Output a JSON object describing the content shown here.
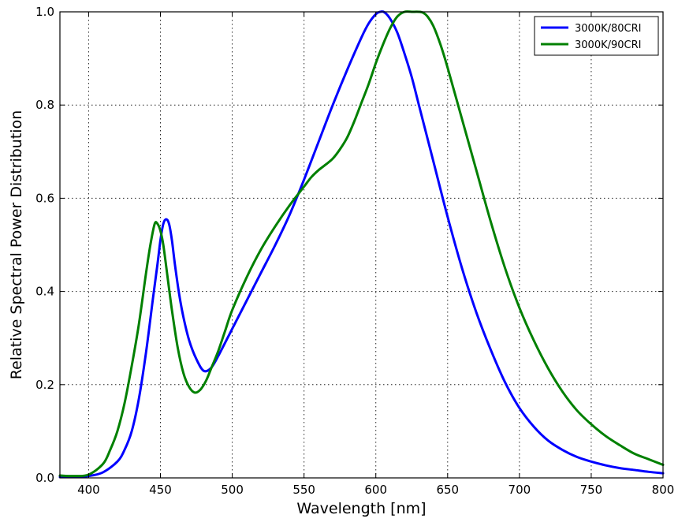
{
  "chart_data": {
    "type": "line",
    "title": "",
    "xlabel": "Wavelength [nm]",
    "ylabel": "Relative Spectral Power Distribution",
    "xlim": [
      380,
      800
    ],
    "ylim": [
      0.0,
      1.0
    ],
    "grid": true,
    "legend_position": "top-right",
    "x_ticks": [
      400,
      450,
      500,
      550,
      600,
      650,
      700,
      750,
      800
    ],
    "x_tick_labels": [
      "400",
      "450",
      "500",
      "550",
      "600",
      "650",
      "700",
      "750",
      "800"
    ],
    "y_ticks": [
      0.0,
      0.2,
      0.4,
      0.6,
      0.8,
      1.0
    ],
    "y_tick_labels": [
      "0.0",
      "0.2",
      "0.4",
      "0.6",
      "0.8",
      "1.0"
    ],
    "series": [
      {
        "name": "3000K/80CRI",
        "color": "#0000ff",
        "x": [
          380,
          390,
          400,
          410,
          420,
          425,
          430,
          435,
          440,
          445,
          448,
          450,
          452,
          454,
          456,
          458,
          460,
          463,
          466,
          470,
          475,
          480,
          485,
          490,
          500,
          510,
          520,
          530,
          540,
          550,
          560,
          570,
          580,
          590,
          595,
          600,
          603,
          606,
          610,
          615,
          620,
          625,
          630,
          640,
          650,
          660,
          670,
          680,
          690,
          700,
          710,
          720,
          730,
          740,
          750,
          760,
          770,
          780,
          790,
          800
        ],
        "values": [
          0.002,
          0.002,
          0.004,
          0.012,
          0.035,
          0.06,
          0.1,
          0.17,
          0.27,
          0.39,
          0.46,
          0.51,
          0.545,
          0.555,
          0.545,
          0.51,
          0.46,
          0.395,
          0.345,
          0.295,
          0.255,
          0.23,
          0.235,
          0.26,
          0.32,
          0.38,
          0.44,
          0.5,
          0.565,
          0.64,
          0.72,
          0.8,
          0.875,
          0.945,
          0.975,
          0.995,
          1.0,
          0.999,
          0.985,
          0.955,
          0.91,
          0.86,
          0.8,
          0.68,
          0.56,
          0.45,
          0.355,
          0.275,
          0.205,
          0.15,
          0.11,
          0.08,
          0.06,
          0.045,
          0.035,
          0.027,
          0.021,
          0.017,
          0.013,
          0.01
        ]
      },
      {
        "name": "3000K/90CRI",
        "color": "#008000",
        "x": [
          380,
          390,
          400,
          410,
          415,
          420,
          425,
          430,
          435,
          440,
          443,
          446,
          448,
          450,
          452,
          455,
          458,
          462,
          466,
          470,
          474,
          478,
          482,
          486,
          490,
          495,
          500,
          510,
          520,
          530,
          540,
          550,
          555,
          560,
          565,
          570,
          575,
          580,
          585,
          590,
          595,
          600,
          605,
          610,
          615,
          620,
          625,
          630,
          633,
          636,
          640,
          645,
          650,
          660,
          670,
          680,
          690,
          700,
          710,
          720,
          730,
          740,
          750,
          760,
          770,
          780,
          790,
          800
        ],
        "values": [
          0.005,
          0.004,
          0.007,
          0.03,
          0.06,
          0.1,
          0.16,
          0.24,
          0.33,
          0.44,
          0.5,
          0.545,
          0.545,
          0.53,
          0.5,
          0.43,
          0.36,
          0.28,
          0.225,
          0.195,
          0.183,
          0.19,
          0.21,
          0.24,
          0.27,
          0.315,
          0.36,
          0.43,
          0.49,
          0.54,
          0.585,
          0.625,
          0.645,
          0.66,
          0.672,
          0.685,
          0.705,
          0.73,
          0.765,
          0.805,
          0.845,
          0.89,
          0.93,
          0.965,
          0.99,
          1.0,
          1.0,
          1.0,
          0.998,
          0.99,
          0.97,
          0.93,
          0.88,
          0.77,
          0.66,
          0.55,
          0.45,
          0.365,
          0.295,
          0.235,
          0.185,
          0.145,
          0.115,
          0.09,
          0.07,
          0.052,
          0.04,
          0.028
        ]
      }
    ]
  }
}
